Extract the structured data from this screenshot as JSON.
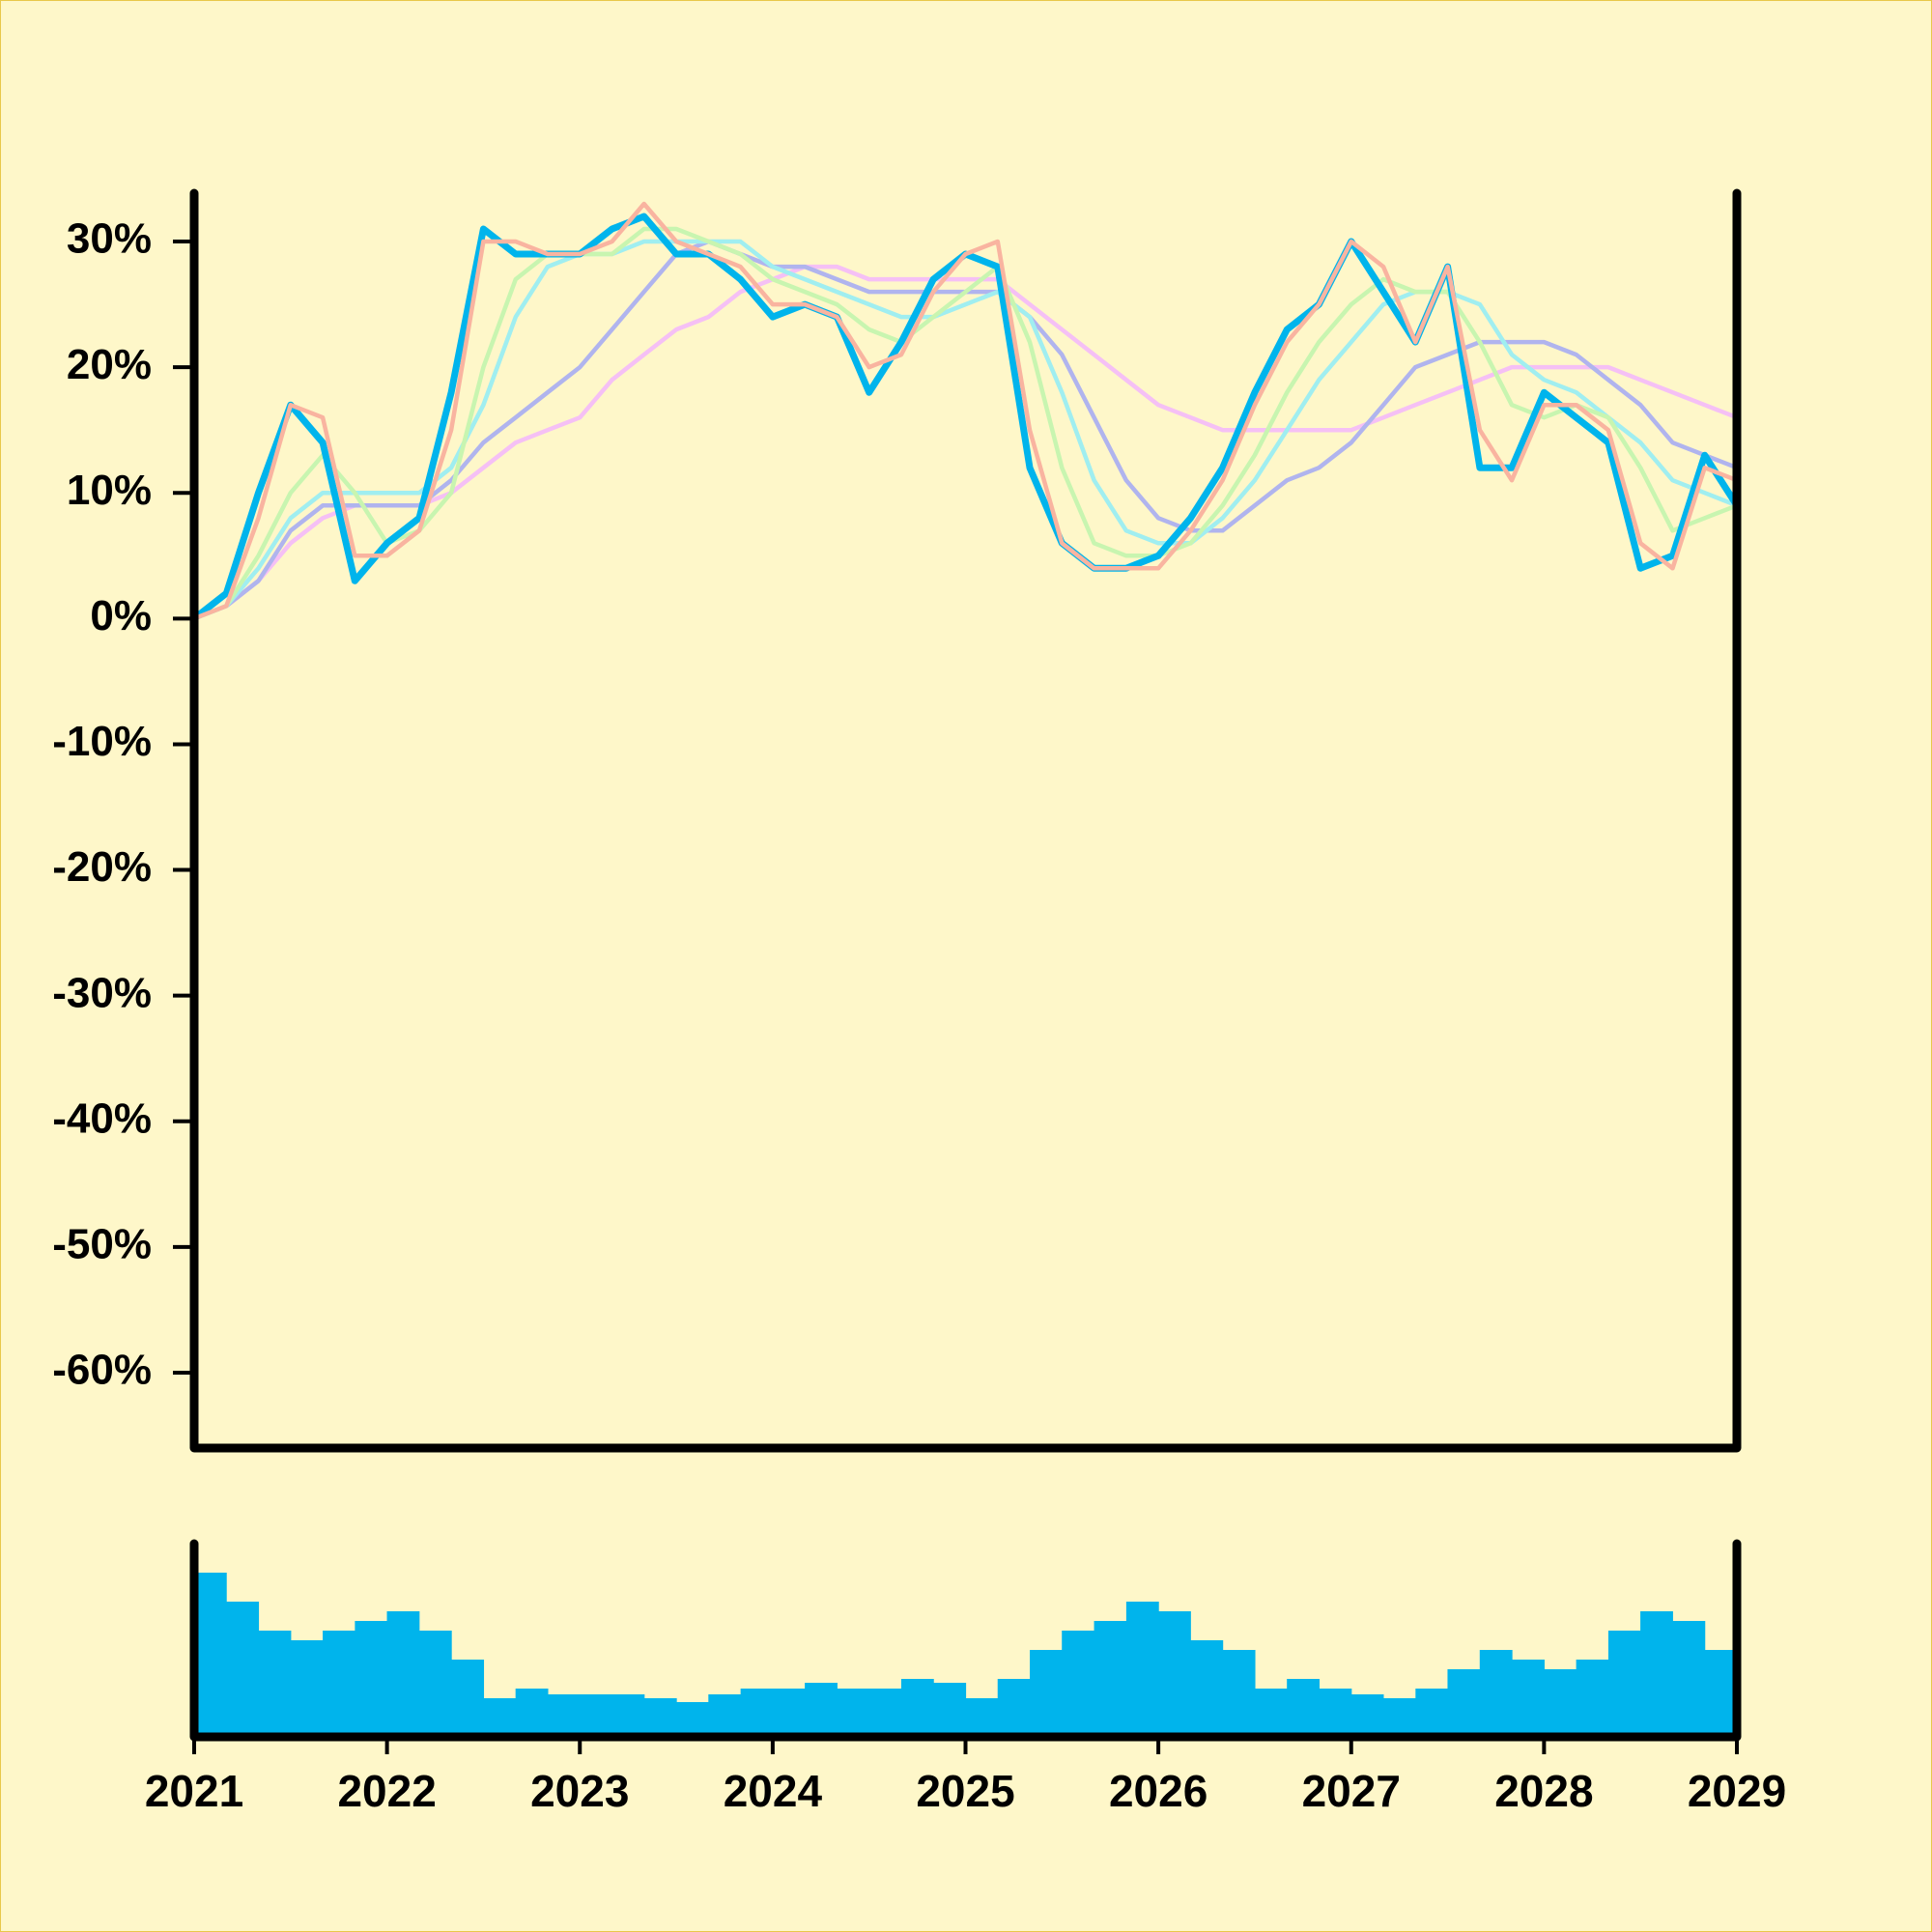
{
  "chart_data": [
    {
      "type": "line",
      "xlim": [
        2021,
        2029
      ],
      "ylim": [
        -66,
        34
      ],
      "yticks": [
        {
          "value": 30,
          "label": "30%"
        },
        {
          "value": 20,
          "label": "20%"
        },
        {
          "value": 10,
          "label": "10%"
        },
        {
          "value": 0,
          "label": "0%"
        },
        {
          "value": -10,
          "label": "-10%"
        },
        {
          "value": -20,
          "label": "-20%"
        },
        {
          "value": -30,
          "label": "-30%"
        },
        {
          "value": -40,
          "label": "-40%"
        },
        {
          "value": -50,
          "label": "-50%"
        },
        {
          "value": -60,
          "label": "-60%"
        }
      ],
      "x": [
        2021,
        2021.167,
        2021.333,
        2021.5,
        2021.667,
        2021.833,
        2022,
        2022.167,
        2022.333,
        2022.5,
        2022.667,
        2022.833,
        2023,
        2023.167,
        2023.333,
        2023.5,
        2023.667,
        2023.833,
        2024,
        2024.167,
        2024.333,
        2024.5,
        2024.667,
        2024.833,
        2025,
        2025.167,
        2025.333,
        2025.5,
        2025.667,
        2025.833,
        2026,
        2026.167,
        2026.333,
        2026.5,
        2026.667,
        2026.833,
        2027,
        2027.167,
        2027.333,
        2027.5,
        2027.667,
        2027.833,
        2028,
        2028.167,
        2028.333,
        2028.5,
        2028.667,
        2028.833,
        2029
      ],
      "series": [
        {
          "color": "#f5c0f5",
          "values": [
            0,
            1,
            3,
            6,
            8,
            9,
            9,
            9,
            10,
            12,
            14,
            15,
            16,
            19,
            21,
            23,
            24,
            26,
            27,
            28,
            28,
            27,
            27,
            27,
            27,
            27,
            25,
            23,
            21,
            19,
            17,
            16,
            15,
            15,
            15,
            15,
            15,
            16,
            17,
            18,
            19,
            20,
            20,
            20,
            20,
            19,
            18,
            17,
            16
          ]
        },
        {
          "color": "#b0b4ee",
          "values": [
            0,
            1,
            3,
            7,
            9,
            9,
            9,
            9,
            11,
            14,
            16,
            18,
            20,
            23,
            26,
            29,
            30,
            29,
            28,
            28,
            27,
            26,
            26,
            26,
            26,
            26,
            24,
            21,
            16,
            11,
            8,
            7,
            7,
            9,
            11,
            12,
            14,
            17,
            20,
            21,
            22,
            22,
            22,
            21,
            19,
            17,
            14,
            13,
            12
          ]
        },
        {
          "color": "#a0eef0",
          "values": [
            0,
            1,
            4,
            8,
            10,
            10,
            10,
            10,
            12,
            17,
            24,
            28,
            29,
            29,
            30,
            30,
            30,
            30,
            28,
            27,
            26,
            25,
            24,
            24,
            25,
            26,
            24,
            18,
            11,
            7,
            6,
            6,
            8,
            11,
            15,
            19,
            22,
            25,
            26,
            26,
            25,
            21,
            19,
            18,
            16,
            14,
            11,
            10,
            9
          ]
        },
        {
          "color": "#c8f5b0",
          "values": [
            0,
            1,
            5,
            10,
            13,
            10,
            6,
            7,
            10,
            20,
            27,
            29,
            29,
            29,
            31,
            31,
            30,
            29,
            27,
            26,
            25,
            23,
            22,
            24,
            26,
            28,
            22,
            12,
            6,
            5,
            5,
            6,
            9,
            13,
            18,
            22,
            25,
            27,
            26,
            26,
            22,
            17,
            16,
            17,
            16,
            12,
            7,
            8,
            9
          ]
        },
        {
          "color": "#00b4ec",
          "values": [
            0,
            2,
            10,
            17,
            14,
            3,
            6,
            8,
            18,
            31,
            29,
            29,
            29,
            31,
            32,
            29,
            29,
            27,
            24,
            25,
            24,
            18,
            22,
            27,
            29,
            28,
            12,
            6,
            4,
            4,
            5,
            8,
            12,
            18,
            23,
            25,
            30,
            26,
            22,
            28,
            12,
            12,
            18,
            16,
            14,
            4,
            5,
            13,
            9
          ]
        },
        {
          "color": "#f9b4a0",
          "values": [
            0,
            1,
            8,
            17,
            16,
            5,
            5,
            7,
            15,
            30,
            30,
            29,
            29,
            30,
            33,
            30,
            29,
            28,
            25,
            25,
            24,
            20,
            21,
            26,
            29,
            30,
            15,
            6,
            4,
            4,
            4,
            7,
            11,
            17,
            22,
            25,
            30,
            28,
            22,
            28,
            15,
            11,
            17,
            17,
            15,
            6,
            4,
            12,
            11
          ]
        }
      ]
    },
    {
      "type": "bar",
      "color": "#00b4ec",
      "xlim": [
        2021,
        2029
      ],
      "ylim": [
        0,
        100
      ],
      "xticks": [
        2021,
        2022,
        2023,
        2024,
        2025,
        2026,
        2027,
        2028,
        2029
      ],
      "x": [
        2021.083,
        2021.25,
        2021.417,
        2021.583,
        2021.75,
        2021.917,
        2022.083,
        2022.25,
        2022.417,
        2022.583,
        2022.75,
        2022.917,
        2023.083,
        2023.25,
        2023.417,
        2023.583,
        2023.75,
        2023.917,
        2024.083,
        2024.25,
        2024.417,
        2024.583,
        2024.75,
        2024.917,
        2025.083,
        2025.25,
        2025.417,
        2025.583,
        2025.75,
        2025.917,
        2026.083,
        2026.25,
        2026.417,
        2026.583,
        2026.75,
        2026.917,
        2027.083,
        2027.25,
        2027.417,
        2027.583,
        2027.75,
        2027.917,
        2028.083,
        2028.25,
        2028.417,
        2028.583,
        2028.75,
        2028.917
      ],
      "values": [
        85,
        70,
        55,
        50,
        55,
        60,
        65,
        55,
        40,
        20,
        25,
        22,
        22,
        22,
        20,
        18,
        22,
        25,
        25,
        28,
        25,
        25,
        30,
        28,
        20,
        30,
        45,
        55,
        60,
        70,
        65,
        50,
        45,
        25,
        30,
        25,
        22,
        20,
        25,
        35,
        45,
        40,
        35,
        40,
        55,
        65,
        60,
        45
      ]
    }
  ]
}
